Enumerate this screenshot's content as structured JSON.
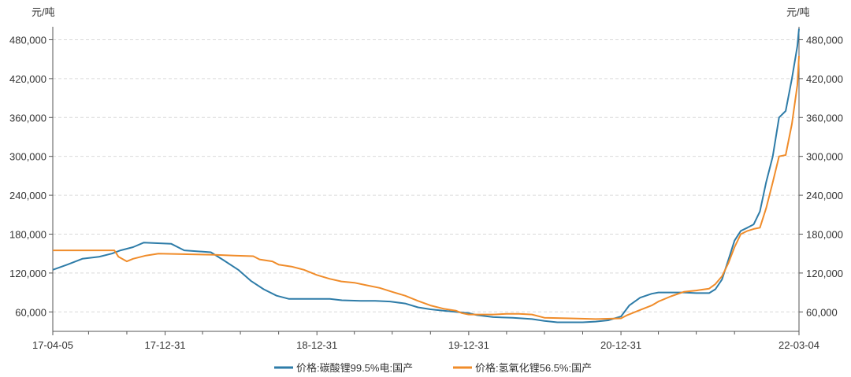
{
  "chart_data": {
    "type": "line",
    "title": "",
    "unit_left": "元/吨",
    "unit_right": "元/吨",
    "x_tick_labels": [
      "17-04-05",
      "17-12-31",
      "18-12-31",
      "19-12-31",
      "20-12-31",
      "22-03-04"
    ],
    "x_ticks": [
      "2017-04-05",
      "2017-12-31",
      "2018-12-31",
      "2019-12-31",
      "2020-12-31",
      "2022-03-04"
    ],
    "xlim": [
      "2017-04-05",
      "2022-03-04"
    ],
    "ylim": [
      30000,
      500000
    ],
    "y_ticks": [
      60000,
      120000,
      180000,
      240000,
      300000,
      360000,
      420000,
      480000
    ],
    "y_tick_labels": [
      "60,000",
      "120,000",
      "180,000",
      "240,000",
      "300,000",
      "360,000",
      "420,000",
      "480,000"
    ],
    "grid": "horizontal-dashed",
    "legend_position": "bottom",
    "series": [
      {
        "name": "价格:碳酸锂99.5%电:国产",
        "color": "#2e7ca8",
        "points": [
          [
            "2017-04-05",
            125000
          ],
          [
            "2017-05-10",
            133000
          ],
          [
            "2017-06-15",
            142000
          ],
          [
            "2017-07-25",
            145000
          ],
          [
            "2017-08-25",
            150000
          ],
          [
            "2017-09-15",
            155000
          ],
          [
            "2017-10-15",
            160000
          ],
          [
            "2017-11-10",
            167000
          ],
          [
            "2018-01-15",
            165000
          ],
          [
            "2018-02-15",
            155000
          ],
          [
            "2018-04-20",
            152000
          ],
          [
            "2018-05-20",
            140000
          ],
          [
            "2018-06-25",
            125000
          ],
          [
            "2018-07-25",
            108000
          ],
          [
            "2018-08-25",
            95000
          ],
          [
            "2018-09-25",
            85000
          ],
          [
            "2018-10-25",
            80000
          ],
          [
            "2018-12-01",
            80000
          ],
          [
            "2019-01-31",
            80000
          ],
          [
            "2019-03-01",
            78000
          ],
          [
            "2019-04-15",
            77000
          ],
          [
            "2019-05-20",
            77000
          ],
          [
            "2019-06-25",
            76000
          ],
          [
            "2019-07-31",
            73000
          ],
          [
            "2019-08-31",
            67000
          ],
          [
            "2019-09-30",
            64000
          ],
          [
            "2019-10-31",
            62000
          ],
          [
            "2019-11-30",
            60000
          ],
          [
            "2019-12-31",
            58000
          ],
          [
            "2020-01-20",
            55000
          ],
          [
            "2020-02-28",
            52000
          ],
          [
            "2020-04-15",
            51000
          ],
          [
            "2020-05-31",
            49000
          ],
          [
            "2020-06-30",
            46000
          ],
          [
            "2020-07-31",
            44000
          ],
          [
            "2020-08-31",
            44000
          ],
          [
            "2020-09-30",
            44000
          ],
          [
            "2020-10-31",
            45000
          ],
          [
            "2020-11-30",
            47000
          ],
          [
            "2020-12-31",
            53000
          ],
          [
            "2021-01-20",
            70000
          ],
          [
            "2021-02-15",
            82000
          ],
          [
            "2021-03-15",
            88000
          ],
          [
            "2021-03-31",
            90000
          ],
          [
            "2021-05-31",
            90000
          ],
          [
            "2021-06-30",
            89000
          ],
          [
            "2021-07-31",
            89000
          ],
          [
            "2021-08-15",
            95000
          ],
          [
            "2021-08-31",
            110000
          ],
          [
            "2021-09-15",
            140000
          ],
          [
            "2021-09-30",
            170000
          ],
          [
            "2021-10-15",
            185000
          ],
          [
            "2021-10-31",
            190000
          ],
          [
            "2021-11-15",
            195000
          ],
          [
            "2021-11-30",
            215000
          ],
          [
            "2021-12-15",
            260000
          ],
          [
            "2021-12-31",
            300000
          ],
          [
            "2022-01-15",
            360000
          ],
          [
            "2022-01-31",
            370000
          ],
          [
            "2022-02-15",
            420000
          ],
          [
            "2022-02-28",
            470000
          ],
          [
            "2022-03-04",
            497000
          ]
        ]
      },
      {
        "name": "价格:氢氧化锂56.5%:国产",
        "color": "#f08c2a",
        "points": [
          [
            "2017-04-05",
            155000
          ],
          [
            "2017-08-31",
            155000
          ],
          [
            "2017-09-10",
            145000
          ],
          [
            "2017-09-30",
            138000
          ],
          [
            "2017-10-15",
            142000
          ],
          [
            "2017-11-15",
            147000
          ],
          [
            "2017-12-15",
            150000
          ],
          [
            "2018-04-30",
            148000
          ],
          [
            "2018-06-15",
            147000
          ],
          [
            "2018-07-31",
            146000
          ],
          [
            "2018-08-15",
            141000
          ],
          [
            "2018-09-15",
            138000
          ],
          [
            "2018-09-30",
            133000
          ],
          [
            "2018-10-31",
            130000
          ],
          [
            "2018-11-30",
            125000
          ],
          [
            "2018-12-31",
            117000
          ],
          [
            "2019-01-31",
            111000
          ],
          [
            "2019-02-28",
            107000
          ],
          [
            "2019-03-31",
            105000
          ],
          [
            "2019-04-30",
            101000
          ],
          [
            "2019-05-31",
            97000
          ],
          [
            "2019-06-30",
            91000
          ],
          [
            "2019-07-31",
            85000
          ],
          [
            "2019-08-31",
            77000
          ],
          [
            "2019-09-30",
            70000
          ],
          [
            "2019-10-31",
            65000
          ],
          [
            "2019-11-30",
            62000
          ],
          [
            "2019-12-15",
            58000
          ],
          [
            "2019-12-31",
            56000
          ],
          [
            "2020-02-29",
            56000
          ],
          [
            "2020-03-31",
            57000
          ],
          [
            "2020-04-30",
            57000
          ],
          [
            "2020-05-31",
            56000
          ],
          [
            "2020-06-30",
            51000
          ],
          [
            "2020-08-31",
            50000
          ],
          [
            "2020-10-31",
            49000
          ],
          [
            "2020-12-31",
            50000
          ],
          [
            "2021-01-15",
            55000
          ],
          [
            "2021-02-15",
            63000
          ],
          [
            "2021-03-15",
            70000
          ],
          [
            "2021-03-31",
            76000
          ],
          [
            "2021-04-30",
            84000
          ],
          [
            "2021-05-31",
            91000
          ],
          [
            "2021-06-30",
            93000
          ],
          [
            "2021-07-31",
            96000
          ],
          [
            "2021-08-15",
            103000
          ],
          [
            "2021-08-31",
            115000
          ],
          [
            "2021-09-15",
            135000
          ],
          [
            "2021-09-30",
            160000
          ],
          [
            "2021-10-15",
            180000
          ],
          [
            "2021-10-31",
            185000
          ],
          [
            "2021-11-15",
            188000
          ],
          [
            "2021-11-30",
            190000
          ],
          [
            "2021-12-15",
            220000
          ],
          [
            "2021-12-31",
            260000
          ],
          [
            "2022-01-15",
            300000
          ],
          [
            "2022-01-31",
            302000
          ],
          [
            "2022-02-15",
            350000
          ],
          [
            "2022-02-28",
            410000
          ],
          [
            "2022-03-04",
            455000
          ]
        ]
      }
    ]
  }
}
